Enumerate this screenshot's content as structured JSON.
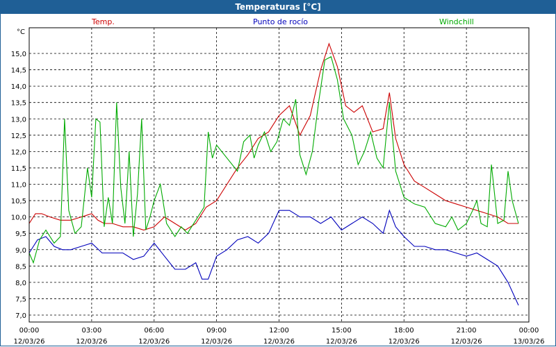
{
  "window": {
    "title": "Temperaturas [°C]"
  },
  "chart_data": {
    "type": "line",
    "ylabel": "°C",
    "ylim": [
      7.0,
      15.5
    ],
    "yticks": [
      "7,0",
      "7,5",
      "8,0",
      "8,5",
      "9,0",
      "9,5",
      "10,0",
      "10,5",
      "11,0",
      "11,5",
      "12,0",
      "12,5",
      "13,0",
      "13,5",
      "14,0",
      "14,5",
      "15,0"
    ],
    "xlim": [
      "12/03/26 00:00",
      "13/03/26 00:00"
    ],
    "xticks": [
      {
        "time": "00:00",
        "date": "12/03/26"
      },
      {
        "time": "03:00",
        "date": "12/03/26"
      },
      {
        "time": "06:00",
        "date": "12/03/26"
      },
      {
        "time": "09:00",
        "date": "12/03/26"
      },
      {
        "time": "12:00",
        "date": "12/03/26"
      },
      {
        "time": "15:00",
        "date": "12/03/26"
      },
      {
        "time": "18:00",
        "date": "12/03/26"
      },
      {
        "time": "21:00",
        "date": "12/03/26"
      },
      {
        "time": "00:00",
        "date": "13/03/26"
      }
    ],
    "grid": true,
    "legend_position": "top",
    "series": [
      {
        "name": "Temp.",
        "color": "#cc0000",
        "points": [
          [
            0.0,
            9.8
          ],
          [
            0.3,
            10.1
          ],
          [
            0.6,
            10.1
          ],
          [
            1.0,
            10.0
          ],
          [
            1.5,
            9.9
          ],
          [
            2.0,
            9.9
          ],
          [
            2.5,
            10.0
          ],
          [
            3.0,
            10.1
          ],
          [
            3.3,
            9.9
          ],
          [
            3.6,
            9.8
          ],
          [
            4.0,
            9.8
          ],
          [
            4.5,
            9.7
          ],
          [
            5.0,
            9.7
          ],
          [
            5.5,
            9.6
          ],
          [
            6.0,
            9.7
          ],
          [
            6.5,
            10.0
          ],
          [
            7.0,
            9.8
          ],
          [
            7.5,
            9.6
          ],
          [
            8.0,
            9.8
          ],
          [
            8.5,
            10.3
          ],
          [
            9.0,
            10.5
          ],
          [
            9.5,
            11.0
          ],
          [
            10.0,
            11.5
          ],
          [
            10.5,
            11.9
          ],
          [
            11.0,
            12.4
          ],
          [
            11.5,
            12.6
          ],
          [
            12.0,
            13.1
          ],
          [
            12.5,
            13.4
          ],
          [
            13.0,
            12.5
          ],
          [
            13.5,
            13.1
          ],
          [
            14.0,
            14.5
          ],
          [
            14.4,
            15.3
          ],
          [
            14.8,
            14.6
          ],
          [
            15.2,
            13.4
          ],
          [
            15.6,
            13.2
          ],
          [
            16.0,
            13.4
          ],
          [
            16.5,
            12.6
          ],
          [
            17.0,
            12.7
          ],
          [
            17.3,
            13.8
          ],
          [
            17.6,
            12.4
          ],
          [
            18.0,
            11.6
          ],
          [
            18.5,
            11.1
          ],
          [
            19.0,
            10.9
          ],
          [
            19.5,
            10.7
          ],
          [
            20.0,
            10.5
          ],
          [
            20.5,
            10.4
          ],
          [
            21.0,
            10.3
          ],
          [
            21.5,
            10.2
          ],
          [
            22.0,
            10.1
          ],
          [
            22.5,
            10.0
          ],
          [
            23.0,
            9.8
          ],
          [
            23.5,
            9.8
          ]
        ]
      },
      {
        "name": "Punto de rocío",
        "color": "#0000bb",
        "points": [
          [
            0.0,
            8.9
          ],
          [
            0.4,
            9.3
          ],
          [
            0.8,
            9.4
          ],
          [
            1.2,
            9.1
          ],
          [
            1.6,
            9.0
          ],
          [
            2.0,
            9.0
          ],
          [
            2.5,
            9.1
          ],
          [
            3.0,
            9.2
          ],
          [
            3.5,
            8.9
          ],
          [
            4.0,
            8.9
          ],
          [
            4.5,
            8.9
          ],
          [
            5.0,
            8.7
          ],
          [
            5.5,
            8.8
          ],
          [
            6.0,
            9.2
          ],
          [
            6.5,
            8.8
          ],
          [
            7.0,
            8.4
          ],
          [
            7.5,
            8.4
          ],
          [
            8.0,
            8.6
          ],
          [
            8.3,
            8.1
          ],
          [
            8.6,
            8.1
          ],
          [
            9.0,
            8.8
          ],
          [
            9.5,
            9.0
          ],
          [
            10.0,
            9.3
          ],
          [
            10.5,
            9.4
          ],
          [
            11.0,
            9.2
          ],
          [
            11.5,
            9.5
          ],
          [
            12.0,
            10.2
          ],
          [
            12.5,
            10.2
          ],
          [
            13.0,
            10.0
          ],
          [
            13.5,
            10.0
          ],
          [
            14.0,
            9.8
          ],
          [
            14.5,
            10.0
          ],
          [
            15.0,
            9.6
          ],
          [
            15.5,
            9.8
          ],
          [
            16.0,
            10.0
          ],
          [
            16.5,
            9.8
          ],
          [
            17.0,
            9.5
          ],
          [
            17.3,
            10.2
          ],
          [
            17.6,
            9.7
          ],
          [
            18.0,
            9.4
          ],
          [
            18.5,
            9.1
          ],
          [
            19.0,
            9.1
          ],
          [
            19.5,
            9.0
          ],
          [
            20.0,
            9.0
          ],
          [
            20.5,
            8.9
          ],
          [
            21.0,
            8.8
          ],
          [
            21.5,
            8.9
          ],
          [
            22.0,
            8.7
          ],
          [
            22.5,
            8.5
          ],
          [
            23.0,
            8.0
          ],
          [
            23.5,
            7.3
          ]
        ]
      },
      {
        "name": "Windchill",
        "color": "#00aa00",
        "points": [
          [
            0.0,
            8.9
          ],
          [
            0.2,
            8.6
          ],
          [
            0.5,
            9.3
          ],
          [
            0.8,
            9.6
          ],
          [
            1.2,
            9.2
          ],
          [
            1.5,
            9.4
          ],
          [
            1.7,
            13.0
          ],
          [
            1.9,
            10.2
          ],
          [
            2.2,
            9.5
          ],
          [
            2.5,
            9.7
          ],
          [
            2.8,
            11.5
          ],
          [
            3.0,
            10.6
          ],
          [
            3.2,
            13.0
          ],
          [
            3.4,
            12.9
          ],
          [
            3.6,
            9.7
          ],
          [
            3.8,
            10.6
          ],
          [
            4.0,
            9.8
          ],
          [
            4.2,
            13.5
          ],
          [
            4.4,
            10.9
          ],
          [
            4.6,
            9.8
          ],
          [
            4.8,
            12.0
          ],
          [
            5.0,
            9.4
          ],
          [
            5.2,
            10.7
          ],
          [
            5.4,
            13.0
          ],
          [
            5.6,
            9.6
          ],
          [
            5.8,
            10.0
          ],
          [
            6.0,
            10.5
          ],
          [
            6.3,
            11.0
          ],
          [
            6.6,
            9.8
          ],
          [
            7.0,
            9.4
          ],
          [
            7.3,
            9.7
          ],
          [
            7.6,
            9.5
          ],
          [
            8.0,
            9.9
          ],
          [
            8.4,
            10.3
          ],
          [
            8.6,
            12.6
          ],
          [
            8.8,
            11.8
          ],
          [
            9.0,
            12.2
          ],
          [
            9.5,
            11.8
          ],
          [
            10.0,
            11.4
          ],
          [
            10.3,
            12.3
          ],
          [
            10.6,
            12.5
          ],
          [
            10.8,
            11.8
          ],
          [
            11.0,
            12.2
          ],
          [
            11.3,
            12.6
          ],
          [
            11.6,
            12.0
          ],
          [
            11.9,
            12.3
          ],
          [
            12.2,
            13.0
          ],
          [
            12.5,
            12.8
          ],
          [
            12.8,
            13.6
          ],
          [
            13.0,
            11.9
          ],
          [
            13.3,
            11.3
          ],
          [
            13.6,
            12.0
          ],
          [
            13.9,
            13.5
          ],
          [
            14.2,
            14.8
          ],
          [
            14.5,
            14.9
          ],
          [
            14.8,
            14.2
          ],
          [
            15.1,
            13.0
          ],
          [
            15.5,
            12.5
          ],
          [
            15.8,
            11.6
          ],
          [
            16.1,
            12.0
          ],
          [
            16.4,
            12.6
          ],
          [
            16.7,
            11.8
          ],
          [
            17.0,
            11.5
          ],
          [
            17.3,
            13.5
          ],
          [
            17.6,
            11.4
          ],
          [
            18.0,
            10.6
          ],
          [
            18.5,
            10.4
          ],
          [
            19.0,
            10.3
          ],
          [
            19.5,
            9.8
          ],
          [
            20.0,
            9.7
          ],
          [
            20.3,
            10.0
          ],
          [
            20.6,
            9.6
          ],
          [
            21.0,
            9.8
          ],
          [
            21.3,
            10.2
          ],
          [
            21.5,
            10.5
          ],
          [
            21.7,
            9.8
          ],
          [
            22.0,
            9.7
          ],
          [
            22.2,
            11.6
          ],
          [
            22.5,
            9.8
          ],
          [
            22.8,
            9.9
          ],
          [
            23.0,
            11.4
          ],
          [
            23.2,
            10.5
          ],
          [
            23.5,
            9.8
          ]
        ]
      }
    ]
  }
}
